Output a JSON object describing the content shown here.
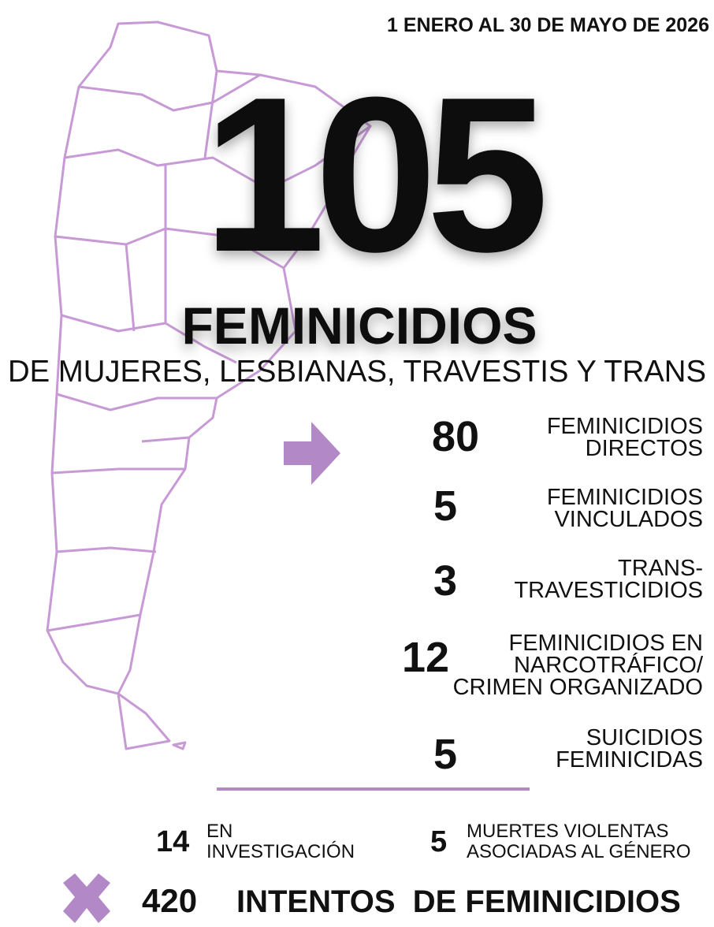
{
  "date_range": "1 ENERO AL 30 DE MAYO DE 2026",
  "total": 105,
  "title": "FEMINICIDIOS",
  "subtitle": "DE MUJERES, LESBIANAS, TRAVESTIS Y TRANS",
  "breakdown": [
    {
      "number": 80,
      "label": [
        "FEMINICIDIOS",
        "DIRECTOS"
      ]
    },
    {
      "number": 5,
      "label": [
        "FEMINICIDIOS",
        "VINCULADOS"
      ]
    },
    {
      "number": 3,
      "label": [
        "TRANS-",
        "TRAVESTICIDIOS"
      ]
    },
    {
      "number": 12,
      "label": [
        "FEMINICIDIOS EN",
        "NARCOTRÁFICO/",
        "CRIMEN ORGANIZADO"
      ]
    },
    {
      "number": 5,
      "label": [
        "SUICIDIOS",
        "FEMINICIDAS"
      ]
    }
  ],
  "others": [
    {
      "number": 14,
      "label": [
        "EN",
        "INVESTIGACIÓN"
      ]
    },
    {
      "number": 5,
      "label": [
        "MUERTES VIOLENTAS",
        "ASOCIADAS AL GÉNERO"
      ]
    }
  ],
  "attempts": {
    "number": 420,
    "label": "INTENTOS  DE FEMINICIDIOS"
  }
}
